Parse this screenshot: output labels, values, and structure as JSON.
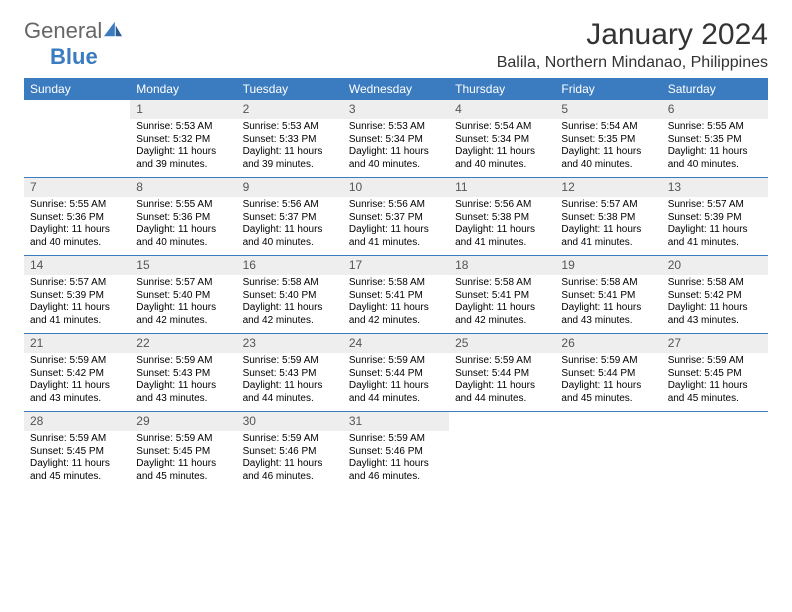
{
  "logo": {
    "word1": "General",
    "word2": "Blue"
  },
  "title": "January 2024",
  "location": "Balila, Northern Mindanao, Philippines",
  "colors": {
    "header_bg": "#3b7bbf",
    "header_text": "#ffffff",
    "daynum_bg": "#eeeeee",
    "row_divider": "#3b7bbf",
    "page_bg": "#ffffff",
    "text": "#000000"
  },
  "typography": {
    "month_title_fontsize": 30,
    "location_fontsize": 16,
    "weekday_fontsize": 12,
    "daynum_fontsize": 12,
    "cell_fontsize": 10,
    "font_family": "Arial"
  },
  "weekdays": [
    "Sunday",
    "Monday",
    "Tuesday",
    "Wednesday",
    "Thursday",
    "Friday",
    "Saturday"
  ],
  "weeks": [
    [
      null,
      {
        "day": "1",
        "sunrise": "Sunrise: 5:53 AM",
        "sunset": "Sunset: 5:32 PM",
        "daylight": "Daylight: 11 hours and 39 minutes."
      },
      {
        "day": "2",
        "sunrise": "Sunrise: 5:53 AM",
        "sunset": "Sunset: 5:33 PM",
        "daylight": "Daylight: 11 hours and 39 minutes."
      },
      {
        "day": "3",
        "sunrise": "Sunrise: 5:53 AM",
        "sunset": "Sunset: 5:34 PM",
        "daylight": "Daylight: 11 hours and 40 minutes."
      },
      {
        "day": "4",
        "sunrise": "Sunrise: 5:54 AM",
        "sunset": "Sunset: 5:34 PM",
        "daylight": "Daylight: 11 hours and 40 minutes."
      },
      {
        "day": "5",
        "sunrise": "Sunrise: 5:54 AM",
        "sunset": "Sunset: 5:35 PM",
        "daylight": "Daylight: 11 hours and 40 minutes."
      },
      {
        "day": "6",
        "sunrise": "Sunrise: 5:55 AM",
        "sunset": "Sunset: 5:35 PM",
        "daylight": "Daylight: 11 hours and 40 minutes."
      }
    ],
    [
      {
        "day": "7",
        "sunrise": "Sunrise: 5:55 AM",
        "sunset": "Sunset: 5:36 PM",
        "daylight": "Daylight: 11 hours and 40 minutes."
      },
      {
        "day": "8",
        "sunrise": "Sunrise: 5:55 AM",
        "sunset": "Sunset: 5:36 PM",
        "daylight": "Daylight: 11 hours and 40 minutes."
      },
      {
        "day": "9",
        "sunrise": "Sunrise: 5:56 AM",
        "sunset": "Sunset: 5:37 PM",
        "daylight": "Daylight: 11 hours and 40 minutes."
      },
      {
        "day": "10",
        "sunrise": "Sunrise: 5:56 AM",
        "sunset": "Sunset: 5:37 PM",
        "daylight": "Daylight: 11 hours and 41 minutes."
      },
      {
        "day": "11",
        "sunrise": "Sunrise: 5:56 AM",
        "sunset": "Sunset: 5:38 PM",
        "daylight": "Daylight: 11 hours and 41 minutes."
      },
      {
        "day": "12",
        "sunrise": "Sunrise: 5:57 AM",
        "sunset": "Sunset: 5:38 PM",
        "daylight": "Daylight: 11 hours and 41 minutes."
      },
      {
        "day": "13",
        "sunrise": "Sunrise: 5:57 AM",
        "sunset": "Sunset: 5:39 PM",
        "daylight": "Daylight: 11 hours and 41 minutes."
      }
    ],
    [
      {
        "day": "14",
        "sunrise": "Sunrise: 5:57 AM",
        "sunset": "Sunset: 5:39 PM",
        "daylight": "Daylight: 11 hours and 41 minutes."
      },
      {
        "day": "15",
        "sunrise": "Sunrise: 5:57 AM",
        "sunset": "Sunset: 5:40 PM",
        "daylight": "Daylight: 11 hours and 42 minutes."
      },
      {
        "day": "16",
        "sunrise": "Sunrise: 5:58 AM",
        "sunset": "Sunset: 5:40 PM",
        "daylight": "Daylight: 11 hours and 42 minutes."
      },
      {
        "day": "17",
        "sunrise": "Sunrise: 5:58 AM",
        "sunset": "Sunset: 5:41 PM",
        "daylight": "Daylight: 11 hours and 42 minutes."
      },
      {
        "day": "18",
        "sunrise": "Sunrise: 5:58 AM",
        "sunset": "Sunset: 5:41 PM",
        "daylight": "Daylight: 11 hours and 42 minutes."
      },
      {
        "day": "19",
        "sunrise": "Sunrise: 5:58 AM",
        "sunset": "Sunset: 5:41 PM",
        "daylight": "Daylight: 11 hours and 43 minutes."
      },
      {
        "day": "20",
        "sunrise": "Sunrise: 5:58 AM",
        "sunset": "Sunset: 5:42 PM",
        "daylight": "Daylight: 11 hours and 43 minutes."
      }
    ],
    [
      {
        "day": "21",
        "sunrise": "Sunrise: 5:59 AM",
        "sunset": "Sunset: 5:42 PM",
        "daylight": "Daylight: 11 hours and 43 minutes."
      },
      {
        "day": "22",
        "sunrise": "Sunrise: 5:59 AM",
        "sunset": "Sunset: 5:43 PM",
        "daylight": "Daylight: 11 hours and 43 minutes."
      },
      {
        "day": "23",
        "sunrise": "Sunrise: 5:59 AM",
        "sunset": "Sunset: 5:43 PM",
        "daylight": "Daylight: 11 hours and 44 minutes."
      },
      {
        "day": "24",
        "sunrise": "Sunrise: 5:59 AM",
        "sunset": "Sunset: 5:44 PM",
        "daylight": "Daylight: 11 hours and 44 minutes."
      },
      {
        "day": "25",
        "sunrise": "Sunrise: 5:59 AM",
        "sunset": "Sunset: 5:44 PM",
        "daylight": "Daylight: 11 hours and 44 minutes."
      },
      {
        "day": "26",
        "sunrise": "Sunrise: 5:59 AM",
        "sunset": "Sunset: 5:44 PM",
        "daylight": "Daylight: 11 hours and 45 minutes."
      },
      {
        "day": "27",
        "sunrise": "Sunrise: 5:59 AM",
        "sunset": "Sunset: 5:45 PM",
        "daylight": "Daylight: 11 hours and 45 minutes."
      }
    ],
    [
      {
        "day": "28",
        "sunrise": "Sunrise: 5:59 AM",
        "sunset": "Sunset: 5:45 PM",
        "daylight": "Daylight: 11 hours and 45 minutes."
      },
      {
        "day": "29",
        "sunrise": "Sunrise: 5:59 AM",
        "sunset": "Sunset: 5:45 PM",
        "daylight": "Daylight: 11 hours and 45 minutes."
      },
      {
        "day": "30",
        "sunrise": "Sunrise: 5:59 AM",
        "sunset": "Sunset: 5:46 PM",
        "daylight": "Daylight: 11 hours and 46 minutes."
      },
      {
        "day": "31",
        "sunrise": "Sunrise: 5:59 AM",
        "sunset": "Sunset: 5:46 PM",
        "daylight": "Daylight: 11 hours and 46 minutes."
      },
      null,
      null,
      null
    ]
  ]
}
